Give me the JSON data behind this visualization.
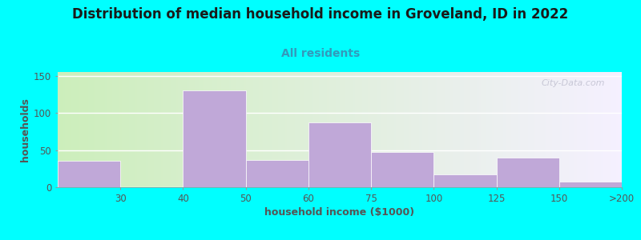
{
  "title": "Distribution of median household income in Groveland, ID in 2022",
  "subtitle": "All residents",
  "xlabel": "household income ($1000)",
  "ylabel": "households",
  "background_color": "#00FFFF",
  "bar_color": "#c0a8d8",
  "grad_left": "#cceebb",
  "grad_right": "#f5f0ff",
  "bar_heights": [
    35,
    0,
    130,
    37,
    87,
    47,
    17,
    40,
    8
  ],
  "tick_labels": [
    "30",
    "40",
    "50",
    "60",
    "75",
    "100",
    "125",
    "150",
    ">200"
  ],
  "ylim": [
    0,
    155
  ],
  "yticks": [
    0,
    50,
    100,
    150
  ],
  "title_fontsize": 12,
  "subtitle_fontsize": 10,
  "axis_label_fontsize": 9,
  "watermark_text": "City-Data.com"
}
